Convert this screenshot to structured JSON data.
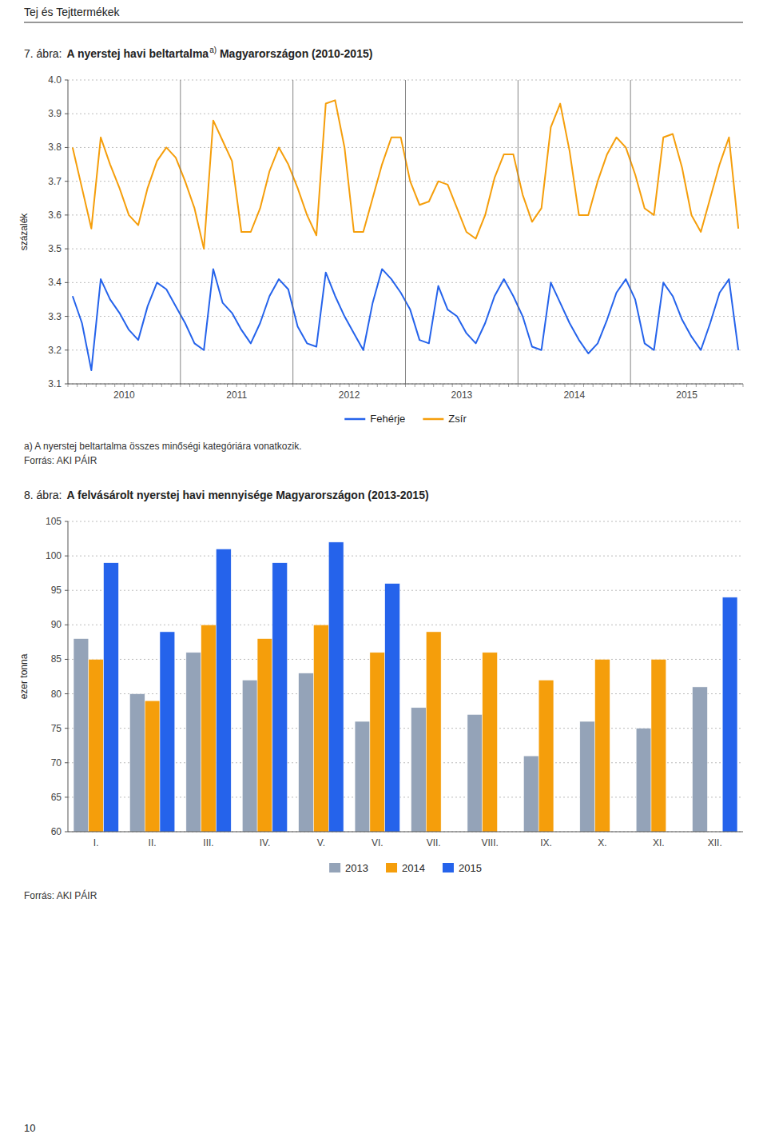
{
  "header": "Tej és Tejttermékek",
  "page_number": "10",
  "chart_data": [
    {
      "type": "line",
      "label": "7. ábra:",
      "title": "A nyerstej havi beltartalma",
      "title_superscript": "a)",
      "title_continued": " Magyarországon (2010-2015)",
      "y_label": "százalék",
      "categories": [
        null,
        null,
        null,
        null,
        null,
        null,
        null,
        null,
        null,
        null,
        null,
        null,
        null,
        null,
        null,
        null,
        null,
        null,
        null,
        null,
        null,
        null,
        null,
        null,
        null,
        null,
        null,
        null,
        null,
        null,
        null,
        null,
        null,
        null,
        null,
        null,
        null,
        null,
        null,
        null,
        null,
        null,
        null,
        null,
        null,
        null,
        null,
        null,
        null,
        null,
        null,
        null,
        null,
        null,
        null,
        null,
        null,
        null,
        null,
        null,
        null,
        null,
        null,
        null,
        null,
        null,
        null,
        null,
        null,
        null,
        null,
        null
      ],
      "category_groups": [
        "2010",
        "2011",
        "2012",
        "2013",
        "2014",
        "2015"
      ],
      "series": [
        {
          "name": "Fehérje",
          "color": "#2563eb",
          "values": [
            3.36,
            3.28,
            3.14,
            3.41,
            3.35,
            3.31,
            3.26,
            3.23,
            3.33,
            3.4,
            3.38,
            3.33,
            3.28,
            3.22,
            3.2,
            3.44,
            3.34,
            3.31,
            3.26,
            3.22,
            3.28,
            3.36,
            3.41,
            3.38,
            3.27,
            3.22,
            3.21,
            3.43,
            3.36,
            3.3,
            3.25,
            3.2,
            3.34,
            3.44,
            3.41,
            3.37,
            3.32,
            3.23,
            3.22,
            3.39,
            3.32,
            3.3,
            3.25,
            3.22,
            3.28,
            3.36,
            3.41,
            3.36,
            3.3,
            3.21,
            3.2,
            3.4,
            3.34,
            3.28,
            3.23,
            3.19,
            3.22,
            3.29,
            3.37,
            3.41,
            3.35,
            3.22,
            3.2,
            3.4,
            3.36,
            3.29,
            3.24,
            3.2,
            3.28,
            3.37,
            3.41,
            3.2
          ]
        },
        {
          "name": "Zsír",
          "color": "#f59e0b",
          "values": [
            3.8,
            3.68,
            3.56,
            3.83,
            3.75,
            3.68,
            3.6,
            3.57,
            3.68,
            3.76,
            3.8,
            3.77,
            3.7,
            3.62,
            3.5,
            3.88,
            3.82,
            3.76,
            3.55,
            3.55,
            3.62,
            3.73,
            3.8,
            3.75,
            3.68,
            3.6,
            3.54,
            3.93,
            3.94,
            3.8,
            3.55,
            3.55,
            3.65,
            3.75,
            3.83,
            3.83,
            3.7,
            3.63,
            3.64,
            3.7,
            3.69,
            3.62,
            3.55,
            3.53,
            3.6,
            3.71,
            3.78,
            3.78,
            3.66,
            3.58,
            3.62,
            3.86,
            3.93,
            3.79,
            3.6,
            3.6,
            3.7,
            3.78,
            3.83,
            3.8,
            3.72,
            3.62,
            3.6,
            3.83,
            3.84,
            3.74,
            3.6,
            3.55,
            3.65,
            3.75,
            3.83,
            3.56
          ]
        }
      ],
      "ylim": [
        3.1,
        4.0
      ],
      "yticks": [
        3.1,
        3.2,
        3.3,
        3.4,
        3.5,
        3.6,
        3.7,
        3.8,
        3.9,
        {
          "value": 4.0,
          "label": "4.0"
        }
      ],
      "grid": true,
      "legend": "bottom",
      "annotations": [
        "a) A nyerstej beltartalma összes minőségi kategóriára vonatkozik.",
        "Forrás: AKI PÁIR"
      ]
    },
    {
      "type": "bar",
      "label": "8. ábra:",
      "title": "A felvásárolt nyerstej havi mennyisége Magyarországon (2013-2015)",
      "y_label": "ezer tonna",
      "categories": [
        "I.",
        "II.",
        "III.",
        "IV.",
        "V.",
        "VI.",
        "VII.",
        "VIII.",
        "IX.",
        "X.",
        "XI.",
        "XII."
      ],
      "series": [
        {
          "name": "2013",
          "color": "#94a3b8",
          "values": [
            88,
            80,
            86,
            82,
            83,
            76,
            78,
            77,
            71,
            76,
            75,
            81
          ]
        },
        {
          "name": "2014",
          "color": "#f59e0b",
          "values": [
            85,
            79,
            90,
            88,
            90,
            86,
            89,
            86,
            82,
            85,
            85,
            null
          ]
        },
        {
          "name": "2015",
          "color": "#2563eb",
          "values": [
            99,
            89,
            101,
            99,
            102,
            96,
            null,
            null,
            null,
            null,
            null,
            94
          ]
        }
      ],
      "ylim": [
        60,
        105
      ],
      "yticks": [
        60,
        65,
        70,
        75,
        80,
        85,
        90,
        95,
        100,
        105
      ],
      "grid": true,
      "legend": "bottom",
      "annotations": [
        "Forrás: AKI PÁIR"
      ]
    }
  ]
}
